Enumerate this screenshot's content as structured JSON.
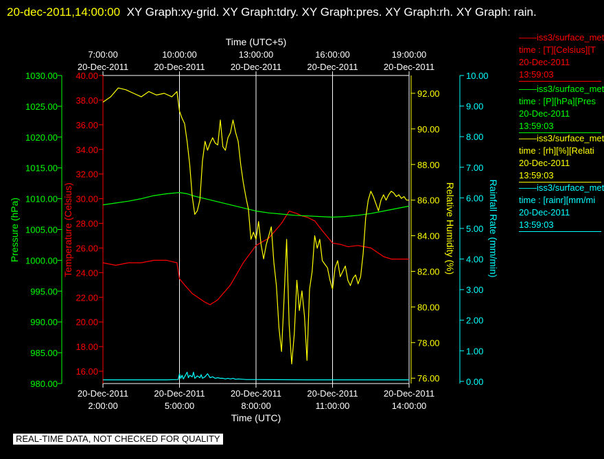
{
  "header": {
    "timestamp": "20-dec-2011,14:00:00",
    "graphs": "XY Graph:xy-grid.  XY Graph:tdry.  XY Graph:pres.  XY Graph:rh.  XY Graph: rain."
  },
  "footer": {
    "notice": "REAL-TIME DATA, NOT CHECKED FOR QUALITY"
  },
  "legend": [
    {
      "name": "——iss3/surface_met",
      "field": "time : [T][Celsius][T",
      "date": "20-Dec-2011",
      "time": "13:59:03",
      "color": "#ff0000"
    },
    {
      "name": "——iss3/surface_met",
      "field": "time : [P][hPa][Pres",
      "date": "20-Dec-2011",
      "time": "13:59:03",
      "color": "#00ff00"
    },
    {
      "name": "——iss3/surface_met",
      "field": "time : [rh][%][Relati",
      "date": "20-Dec-2011",
      "time": "13:59:03",
      "color": "#ffff00"
    },
    {
      "name": "——iss3/surface_met",
      "field": "time : [rainr][mm/mi",
      "date": "20-Dec-2011",
      "time": "13:59:03",
      "color": "#00ffff"
    }
  ],
  "chart_data": {
    "type": "line",
    "x_top": {
      "label": "Time (UTC+5)",
      "ticks": [
        {
          "time": "7:00:00",
          "date": "20-Dec-2011"
        },
        {
          "time": "10:00:00",
          "date": "20-Dec-2011"
        },
        {
          "time": "13:00:00",
          "date": "20-Dec-2011"
        },
        {
          "time": "16:00:00",
          "date": "20-Dec-2011"
        },
        {
          "time": "19:00:00",
          "date": "20-Dec-2011"
        }
      ]
    },
    "x_bottom": {
      "label": "Time (UTC)",
      "range_hours": [
        2,
        14
      ],
      "ticks": [
        {
          "time": "2:00:00",
          "date": "20-Dec-2011"
        },
        {
          "time": "5:00:00",
          "date": "20-Dec-2011"
        },
        {
          "time": "8:00:00",
          "date": "20-Dec-2011"
        },
        {
          "time": "11:00:00",
          "date": "20-Dec-2011"
        },
        {
          "time": "14:00:00",
          "date": "20-Dec-2011"
        }
      ]
    },
    "axes": {
      "pressure": {
        "label": "Pressure (hPa)",
        "color": "#00ff00",
        "range": [
          980,
          1030
        ],
        "ticks": [
          "980.00",
          "985.00",
          "990.00",
          "995.00",
          "1000.00",
          "1005.00",
          "1010.00",
          "1015.00",
          "1020.00",
          "1025.00",
          "1030.00"
        ]
      },
      "temperature": {
        "label": "Temperature (Celsius)",
        "color": "#ff0000",
        "range": [
          15,
          40
        ],
        "ticks": [
          "16.00",
          "18.00",
          "20.00",
          "22.00",
          "24.00",
          "26.00",
          "28.00",
          "30.00",
          "32.00",
          "34.00",
          "36.00",
          "38.00",
          "40.00"
        ]
      },
      "humidity": {
        "label": "Relative Humidity (%)",
        "color": "#ffff00",
        "range": [
          75.7,
          93.0
        ],
        "ticks": [
          "76.00",
          "78.00",
          "80.00",
          "82.00",
          "84.00",
          "86.00",
          "88.00",
          "90.00",
          "92.00"
        ]
      },
      "rain": {
        "label": "Rainfall Rate (mm/min)",
        "color": "#00ffff",
        "range": [
          -0.07,
          10.0
        ],
        "ticks": [
          "0.00",
          "1.00",
          "2.00",
          "3.00",
          "4.00",
          "5.00",
          "6.00",
          "7.00",
          "8.00",
          "9.00",
          "10.00"
        ]
      }
    },
    "series": [
      {
        "name": "iss3/surface_met T",
        "axis": "temperature",
        "color": "#ff0000",
        "x": [
          2.0,
          2.5,
          3.0,
          3.5,
          4.0,
          4.5,
          4.9,
          5.0,
          5.2,
          5.5,
          6.0,
          6.2,
          6.5,
          7.0,
          7.5,
          8.0,
          8.5,
          9.0,
          9.3,
          9.6,
          9.8,
          10.0,
          10.3,
          10.6,
          11.0,
          11.3,
          11.6,
          12.0,
          12.5,
          13.0,
          13.3,
          13.6,
          14.0
        ],
        "y": [
          24.8,
          24.6,
          24.8,
          24.8,
          25.0,
          25.0,
          24.8,
          23.5,
          23.0,
          22.3,
          21.6,
          21.4,
          21.8,
          23.0,
          24.8,
          26.2,
          26.8,
          28.0,
          29.0,
          28.8,
          28.6,
          28.5,
          28.2,
          27.4,
          26.4,
          26.3,
          26.1,
          26.2,
          26.0,
          25.3,
          25.1,
          25.1,
          25.1
        ]
      },
      {
        "name": "iss3/surface_met P",
        "axis": "pressure",
        "color": "#00ff00",
        "x": [
          2.0,
          2.5,
          3.0,
          3.5,
          4.0,
          4.5,
          5.0,
          5.3,
          5.6,
          6.0,
          6.5,
          7.0,
          7.5,
          8.0,
          8.5,
          9.0,
          9.5,
          10.0,
          10.5,
          11.0,
          11.5,
          12.0,
          12.5,
          13.0,
          13.5,
          14.0
        ],
        "y": [
          1009.0,
          1009.3,
          1009.6,
          1010.0,
          1010.5,
          1010.8,
          1011.0,
          1010.8,
          1010.4,
          1010.0,
          1009.5,
          1009.0,
          1008.5,
          1008.0,
          1007.7,
          1007.5,
          1007.3,
          1007.2,
          1007.1,
          1007.0,
          1007.1,
          1007.3,
          1007.6,
          1008.0,
          1008.4,
          1008.8
        ]
      },
      {
        "name": "iss3/surface_met rh",
        "axis": "humidity",
        "color": "#ffff00",
        "x": [
          2.0,
          2.3,
          2.6,
          2.9,
          3.2,
          3.5,
          3.8,
          4.1,
          4.4,
          4.7,
          4.9,
          5.0,
          5.1,
          5.2,
          5.3,
          5.4,
          5.5,
          5.6,
          5.7,
          5.8,
          5.9,
          6.0,
          6.1,
          6.2,
          6.3,
          6.4,
          6.5,
          6.6,
          6.7,
          6.8,
          6.9,
          7.0,
          7.1,
          7.2,
          7.3,
          7.4,
          7.5,
          7.6,
          7.7,
          7.8,
          7.9,
          8.0,
          8.1,
          8.2,
          8.3,
          8.4,
          8.5,
          8.6,
          8.7,
          8.8,
          8.9,
          9.0,
          9.1,
          9.2,
          9.3,
          9.4,
          9.5,
          9.6,
          9.7,
          9.8,
          9.9,
          10.0,
          10.1,
          10.2,
          10.3,
          10.4,
          10.5,
          10.6,
          10.7,
          10.8,
          10.9,
          11.0,
          11.1,
          11.2,
          11.3,
          11.4,
          11.5,
          11.6,
          11.7,
          11.8,
          11.9,
          12.0,
          12.1,
          12.2,
          12.3,
          12.4,
          12.5,
          12.6,
          12.7,
          12.8,
          12.9,
          13.0,
          13.1,
          13.2,
          13.3,
          13.4,
          13.5,
          13.6,
          13.7,
          13.8,
          13.9,
          14.0
        ],
        "y": [
          91.5,
          91.8,
          92.3,
          92.2,
          92.0,
          91.8,
          92.1,
          91.9,
          92.0,
          91.8,
          92.1,
          91.0,
          90.6,
          90.3,
          89.3,
          88.0,
          86.2,
          85.2,
          85.4,
          86.0,
          88.2,
          89.3,
          88.8,
          89.2,
          89.5,
          89.2,
          89.1,
          90.5,
          89.0,
          88.8,
          89.5,
          89.8,
          90.5,
          89.8,
          89.3,
          88.0,
          87.0,
          86.2,
          85.5,
          83.8,
          84.2,
          83.8,
          84.8,
          83.5,
          82.7,
          83.5,
          84.0,
          84.5,
          82.5,
          81.2,
          78.8,
          77.5,
          80.5,
          83.8,
          79.0,
          76.8,
          78.5,
          81.5,
          79.8,
          80.9,
          79.5,
          77.0,
          81.0,
          82.0,
          84.0,
          83.3,
          83.8,
          82.6,
          82.4,
          82.2,
          81.5,
          81.0,
          82.2,
          82.6,
          81.7,
          82.0,
          82.3,
          81.5,
          81.2,
          81.6,
          81.8,
          81.3,
          81.7,
          83.0,
          85.0,
          86.0,
          86.5,
          86.2,
          85.8,
          85.4,
          86.0,
          86.3,
          86.0,
          86.3,
          86.5,
          86.4,
          86.2,
          86.3,
          86.1,
          86.2,
          86.0,
          86.0
        ]
      },
      {
        "name": "iss3/surface_met rainr",
        "axis": "rain",
        "color": "#00ffff",
        "x": [
          2.0,
          3.0,
          4.0,
          4.5,
          4.95,
          5.0,
          5.05,
          5.1,
          5.15,
          5.2,
          5.3,
          5.35,
          5.4,
          5.5,
          5.55,
          5.6,
          5.7,
          5.8,
          5.85,
          5.9,
          6.0,
          6.1,
          6.2,
          6.3,
          6.4,
          6.5,
          6.6,
          6.7,
          6.8,
          6.9,
          7.0,
          7.1,
          7.2,
          7.3,
          7.5,
          7.6,
          8.0,
          10.0,
          12.0,
          14.0
        ],
        "y": [
          0.05,
          0.05,
          0.05,
          0.05,
          0.06,
          0.25,
          0.1,
          0.2,
          0.08,
          0.15,
          0.3,
          0.12,
          0.2,
          0.15,
          0.3,
          0.1,
          0.18,
          0.12,
          0.22,
          0.1,
          0.15,
          0.25,
          0.12,
          0.15,
          0.1,
          0.12,
          0.1,
          0.1,
          0.08,
          0.1,
          0.08,
          0.1,
          0.07,
          0.08,
          0.07,
          0.06,
          0.06,
          0.05,
          0.05,
          0.05
        ]
      }
    ]
  }
}
